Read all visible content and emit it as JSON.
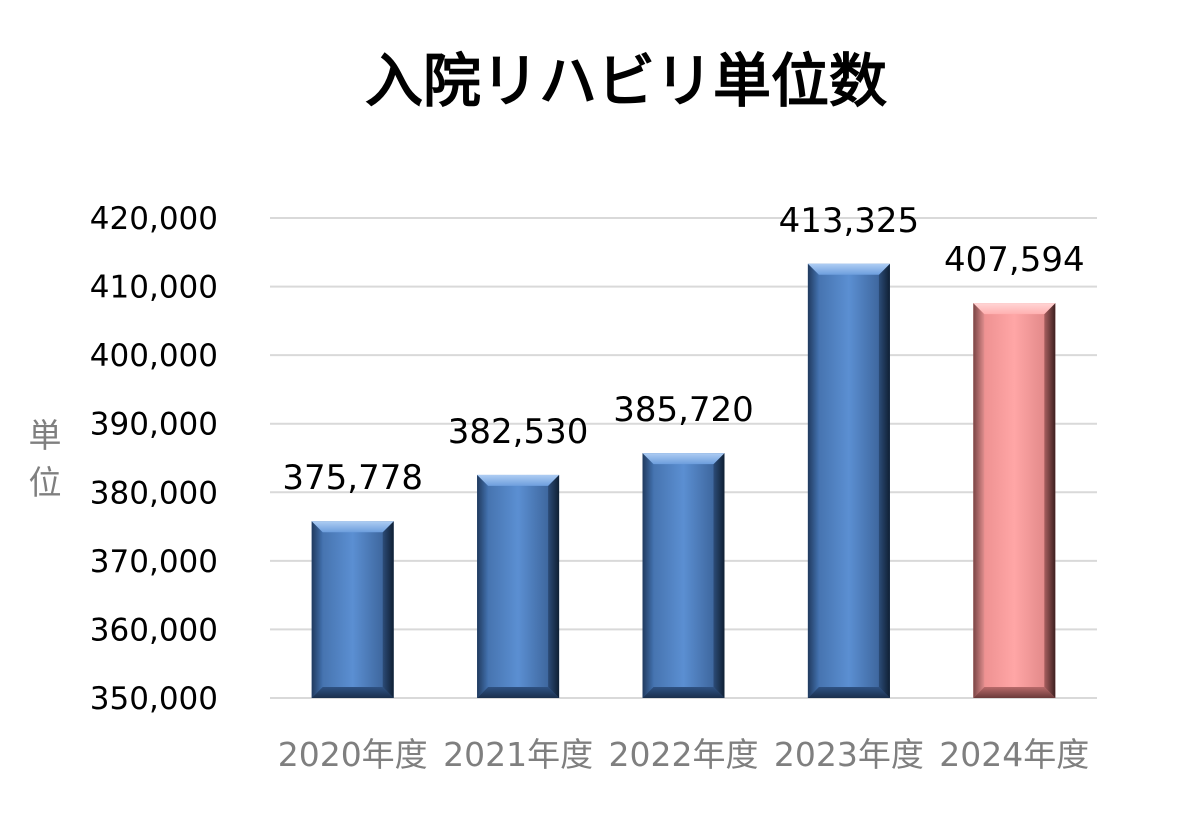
{
  "chart_data": {
    "type": "bar",
    "title": "入院リハビリ単位数",
    "ylabel": "単位",
    "xlabel": "",
    "categories": [
      "2020年度",
      "2021年度",
      "2022年度",
      "2023年度",
      "2024年度"
    ],
    "values": [
      375778,
      382530,
      385720,
      413325,
      407594
    ],
    "value_labels": [
      "375,778",
      "382,530",
      "385,720",
      "413,325",
      "407,594"
    ],
    "ylim": [
      350000,
      420000
    ],
    "y_ticks": [
      350000,
      360000,
      370000,
      380000,
      390000,
      400000,
      410000,
      420000
    ],
    "y_tick_labels": [
      "350,000",
      "360,000",
      "370,000",
      "380,000",
      "390,000",
      "400,000",
      "410,000",
      "420,000"
    ],
    "grid": true,
    "legend": "none",
    "colors": {
      "bar_default": "#4f81bd",
      "bar_highlight": "#ff9999",
      "highlight_index": 4
    }
  }
}
